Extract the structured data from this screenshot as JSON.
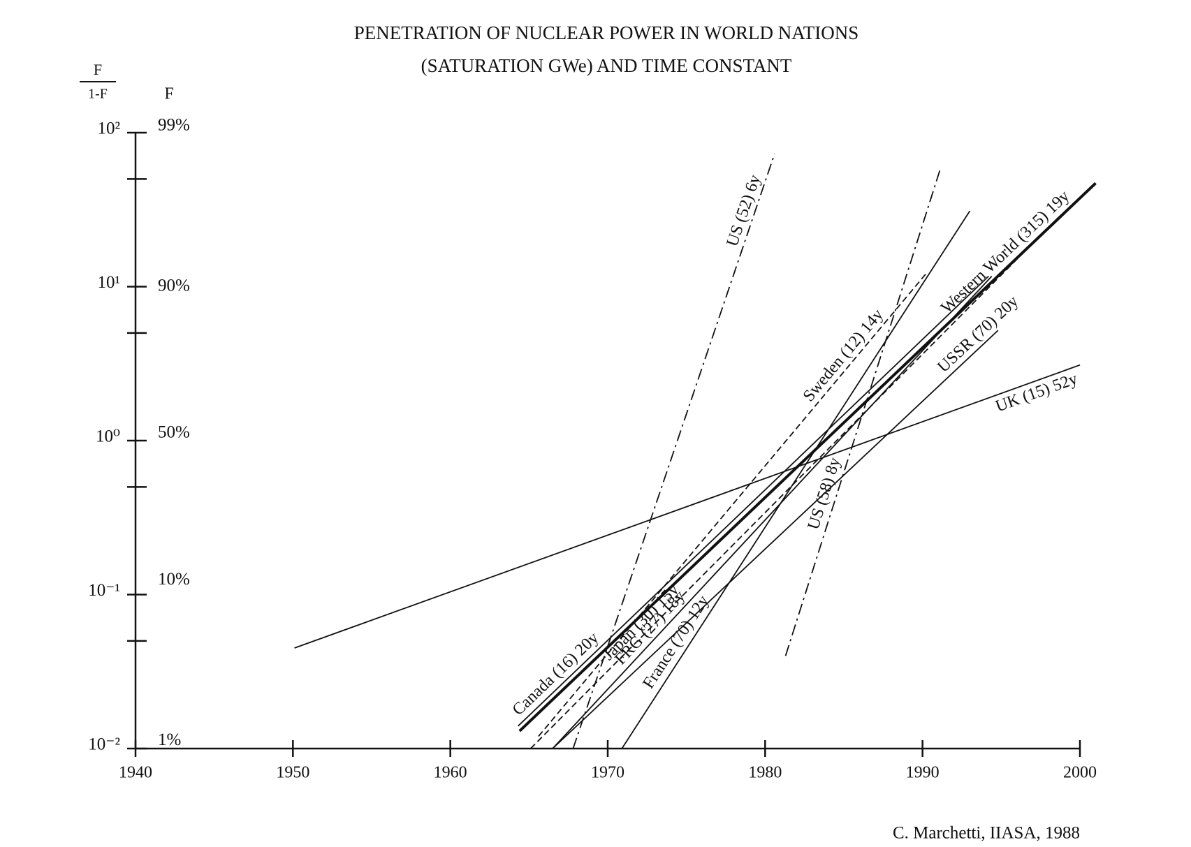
{
  "chart_data": {
    "type": "line",
    "title": "PENETRATION OF NUCLEAR POWER IN WORLD NATIONS",
    "subtitle": "(SATURATION GWe) AND TIME CONSTANT",
    "ylabel": {
      "numerator": "F",
      "denominator": "1-F"
    },
    "y2label": "F",
    "credit": "C. Marchetti, IIASA, 1988",
    "log_y": true,
    "xlim": [
      1940,
      2000
    ],
    "xticks": [
      1940,
      1950,
      1960,
      1970,
      1980,
      1990,
      2000
    ],
    "ylim": [
      0.01,
      100
    ],
    "yticks": [
      {
        "value": 100,
        "label": "10²"
      },
      {
        "value": 10,
        "label": "10¹"
      },
      {
        "value": 1,
        "label": "10⁰"
      },
      {
        "value": 0.1,
        "label": "10⁻¹"
      },
      {
        "value": 0.01,
        "label": "10⁻²"
      }
    ],
    "yminor": [
      50,
      5,
      0.5,
      0.05
    ],
    "y2_scale": "logit-percent",
    "y2ticks": [
      {
        "value": 99,
        "label": "99%"
      },
      {
        "value": 90,
        "label": "90%"
      },
      {
        "value": 50,
        "label": "50%"
      },
      {
        "value": 10,
        "label": "10%"
      },
      {
        "value": 1,
        "label": "1%"
      }
    ],
    "series": [
      {
        "name": "US (52) 6y",
        "color": "#111111",
        "style": "dashdot",
        "x": [
          1967.8,
          1980.6
        ],
        "values": [
          0.01,
          73
        ]
      },
      {
        "name": "Sweden (12) 14y",
        "color": "#111111",
        "style": "dashed",
        "x": [
          1965.6,
          1990.3
        ],
        "values": [
          0.012,
          12.4
        ]
      },
      {
        "name": "Western World (315) 19y",
        "color": "#111111",
        "style": "thick",
        "x": [
          1964.4,
          2001
        ],
        "values": [
          0.013,
          47
        ]
      },
      {
        "name": "USSR (70) 20y",
        "color": "#111111",
        "style": "solid",
        "x": [
          1966.5,
          1994.8
        ],
        "values": [
          0.01,
          5.2
        ]
      },
      {
        "name": "UK (15) 52y",
        "color": "#111111",
        "style": "solid",
        "x": [
          1950.1,
          2000
        ],
        "values": [
          0.045,
          3.1
        ]
      },
      {
        "name": "Japan (30) 15y",
        "color": "#111111",
        "style": "dashed",
        "x": [
          1965.1,
          1998.8
        ],
        "values": [
          0.01,
          29.3
        ]
      },
      {
        "name": "FRG (27) 18y",
        "color": "#111111",
        "style": "solid",
        "x": [
          1966.5,
          1994.4
        ],
        "values": [
          0.01,
          11.7
        ]
      },
      {
        "name": "France (70) 12y",
        "color": "#111111",
        "style": "solid",
        "x": [
          1970.9,
          1993
        ],
        "values": [
          0.01,
          31
        ]
      },
      {
        "name": "US (58) 8y",
        "color": "#111111",
        "style": "dashdot",
        "x": [
          1981.3,
          1991.1
        ],
        "values": [
          0.04,
          57
        ]
      },
      {
        "name": "Canada (16) 20y",
        "color": "#111111",
        "style": "solid",
        "x": [
          1964.3,
          1994.2
        ],
        "values": [
          0.014,
          11.7
        ]
      }
    ]
  }
}
